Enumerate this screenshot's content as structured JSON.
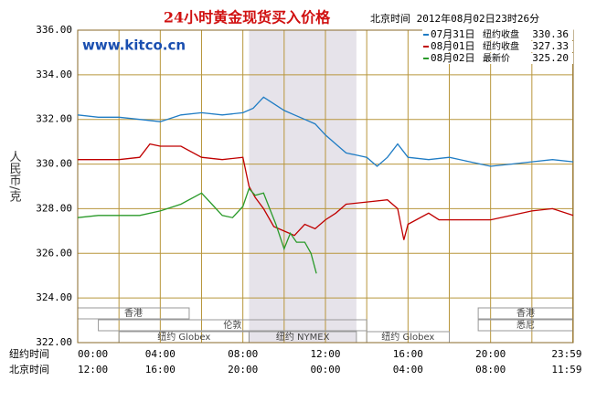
{
  "chart_data": {
    "type": "line",
    "title": "24小时黄金现货买入价格",
    "timestamp": "北京时间 2012年08月02日23时26分",
    "watermark": "www.kitco.cn",
    "y_label": "人民币/克",
    "xlim": [
      0,
      24
    ],
    "ylim": [
      322,
      336
    ],
    "yticks": [
      {
        "value": 322,
        "label": "322.00"
      },
      {
        "value": 324,
        "label": "324.00"
      },
      {
        "value": 326,
        "label": "326.00"
      },
      {
        "value": 328,
        "label": "328.00"
      },
      {
        "value": 330,
        "label": "330.00"
      },
      {
        "value": 332,
        "label": "332.00"
      },
      {
        "value": 334,
        "label": "334.00"
      },
      {
        "value": 336,
        "label": "336.00"
      }
    ],
    "xticks": [
      {
        "value": 0,
        "label": "00:00"
      },
      {
        "value": 4,
        "label": "04:00"
      },
      {
        "value": 8,
        "label": "08:00"
      },
      {
        "value": 12,
        "label": "12:00"
      },
      {
        "value": 16,
        "label": "16:00"
      },
      {
        "value": 20,
        "label": "20:00"
      },
      {
        "value": 23.98,
        "label": "23:59"
      }
    ],
    "xticks_beijing": [
      {
        "value": 0,
        "label": "12:00"
      },
      {
        "value": 4,
        "label": "16:00"
      },
      {
        "value": 8,
        "label": "20:00"
      },
      {
        "value": 12,
        "label": "00:00"
      },
      {
        "value": 16,
        "label": "04:00"
      },
      {
        "value": 20,
        "label": "08:00"
      },
      {
        "value": 23.98,
        "label": "11:59"
      }
    ],
    "xminor": [
      2,
      6,
      10,
      14,
      18,
      22
    ],
    "x_row_labels": [
      "纽约时间",
      "北京时间"
    ],
    "sessions": [
      {
        "label": "香港",
        "start": 0,
        "end": 5.4,
        "row": 0
      },
      {
        "label": "香港",
        "start": 19.4,
        "end": 24,
        "row": 0
      },
      {
        "label": "伦敦",
        "start": 1,
        "end": 14,
        "row": 1
      },
      {
        "label": "悉尼",
        "start": 19.4,
        "end": 24,
        "row": 1
      },
      {
        "label": "纽约 Globex",
        "start": 2,
        "end": 8.3,
        "row": 2
      },
      {
        "label": "纽约 NYMEX",
        "start": 8.3,
        "end": 13.5,
        "row": 2,
        "highlight": true
      },
      {
        "label": "纽约 Globex",
        "start": 14,
        "end": 18,
        "row": 2
      }
    ],
    "grid": true,
    "series": [
      {
        "name": "07月31日",
        "note": "纽约收盘",
        "close": {
          "value": 330.36,
          "label": "330.36"
        },
        "color": "#1f7cc4",
        "x": [
          0,
          1,
          2,
          3,
          4,
          5,
          6,
          7,
          8,
          8.5,
          9,
          9.5,
          10,
          10.5,
          11,
          11.5,
          12,
          12.5,
          13,
          13.5,
          14,
          14.5,
          15,
          15.5,
          16,
          17,
          18,
          19,
          20,
          21,
          22,
          23,
          24
        ],
        "values": [
          332.2,
          332.1,
          332.1,
          332.0,
          331.9,
          332.2,
          332.3,
          332.2,
          332.3,
          332.5,
          333.0,
          332.7,
          332.4,
          332.2,
          332.0,
          331.8,
          331.3,
          330.9,
          330.5,
          330.4,
          330.3,
          329.9,
          330.3,
          330.9,
          330.3,
          330.2,
          330.3,
          330.1,
          329.9,
          330.0,
          330.1,
          330.2,
          330.1
        ]
      },
      {
        "name": "08月01日",
        "note": "纽约收盘",
        "close": {
          "value": 327.33,
          "label": "327.33"
        },
        "color": "#c00000",
        "x": [
          0,
          1,
          2,
          3,
          3.5,
          4,
          5,
          6,
          7,
          8,
          8.3,
          8.6,
          9,
          9.5,
          10,
          10.5,
          11,
          11.5,
          12,
          12.5,
          13,
          14,
          15,
          15.5,
          15.8,
          16,
          17,
          17.5,
          18,
          19,
          20,
          21,
          22,
          23,
          24
        ],
        "values": [
          330.2,
          330.2,
          330.2,
          330.3,
          330.9,
          330.8,
          330.8,
          330.3,
          330.2,
          330.3,
          329.0,
          328.5,
          328.0,
          327.2,
          327.0,
          326.8,
          327.3,
          327.1,
          327.5,
          327.8,
          328.2,
          328.3,
          328.4,
          328.0,
          326.6,
          327.3,
          327.8,
          327.5,
          327.5,
          327.5,
          327.5,
          327.7,
          327.9,
          328.0,
          327.7
        ]
      },
      {
        "name": "08月02日",
        "note": "最新价",
        "close": {
          "value": 325.2,
          "label": "325.20"
        },
        "color": "#2a9a2a",
        "x": [
          0,
          1,
          2,
          3,
          4,
          5,
          6,
          6.5,
          7,
          7.5,
          8,
          8.3,
          8.6,
          9,
          9.3,
          9.6,
          10,
          10.3,
          10.6,
          11,
          11.3,
          11.56
        ],
        "values": [
          327.6,
          327.7,
          327.7,
          327.7,
          327.9,
          328.2,
          328.7,
          328.2,
          327.7,
          327.6,
          328.1,
          328.9,
          328.6,
          328.7,
          328.0,
          327.3,
          326.2,
          326.9,
          326.5,
          326.5,
          326.0,
          325.1
        ]
      }
    ]
  }
}
